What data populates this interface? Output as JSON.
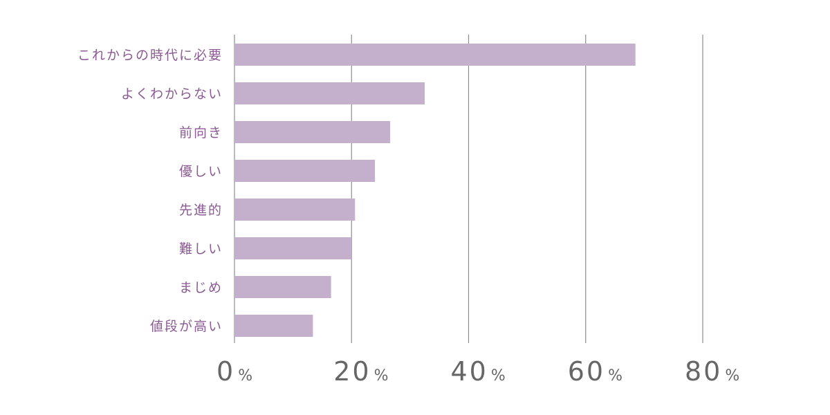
{
  "chart_data": {
    "type": "bar",
    "orientation": "horizontal",
    "categories": [
      "これからの時代に必要",
      "よくわからない",
      "前向き",
      "優しい",
      "先進的",
      "難しい",
      "まじめ",
      "値段が高い"
    ],
    "values": [
      68.5,
      32.5,
      26.6,
      24.0,
      20.6,
      20.0,
      16.5,
      13.4
    ],
    "xlim": [
      0,
      80
    ],
    "ticks": [
      0,
      20,
      40,
      60,
      80
    ],
    "tick_labels": [
      "0",
      "20",
      "40",
      "60",
      "80"
    ],
    "tick_unit": "%",
    "grid": true,
    "bar_color": "#c4b0cc",
    "label_color": "#8a5a92",
    "tick_color": "#666666",
    "grid_color": "#8c8c8c",
    "title": "",
    "xlabel": "",
    "ylabel": ""
  }
}
